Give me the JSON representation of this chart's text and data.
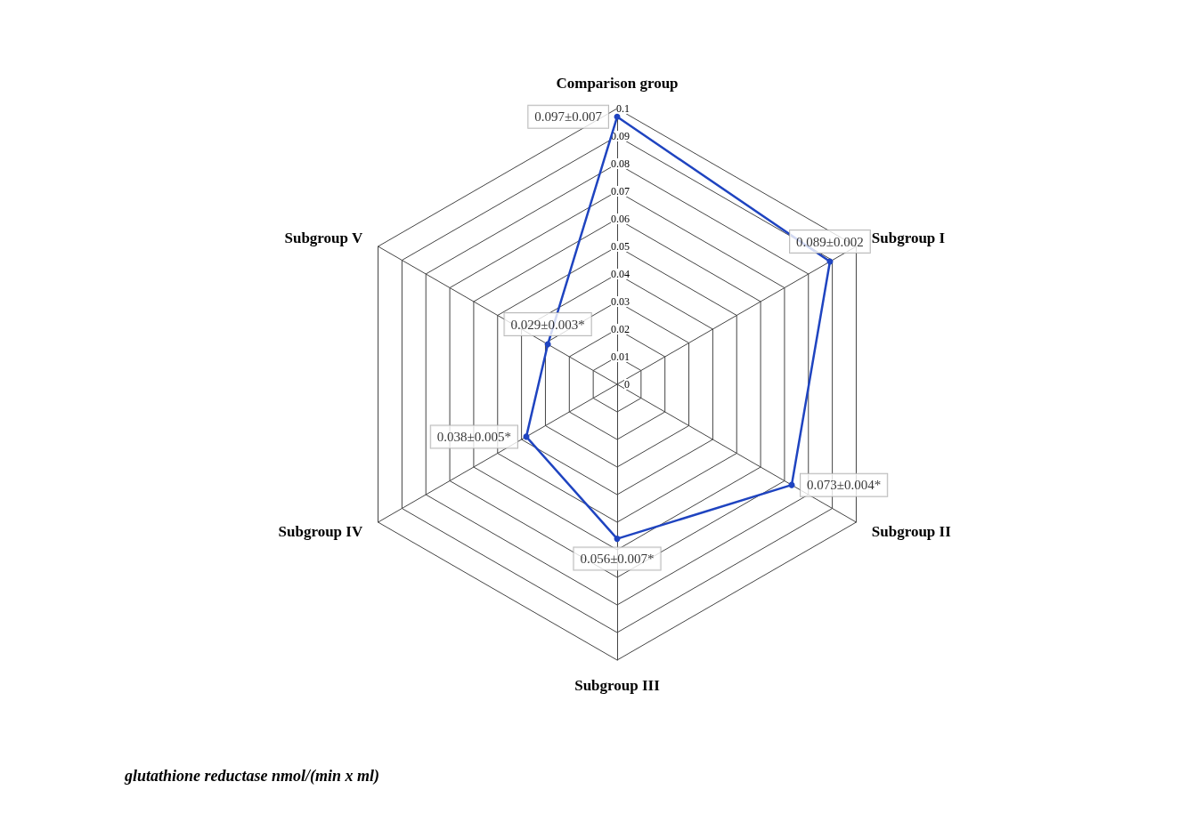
{
  "chart_data": {
    "type": "radar",
    "title": "glutathione reductase nmol/(min x ml)",
    "categories": [
      "Comparison group",
      "Subgroup I",
      "Subgroup II",
      "Subgroup III",
      "Subgroup IV",
      "Subgroup V"
    ],
    "series": [
      {
        "color": "#1f44c0",
        "values": [
          0.097,
          0.089,
          0.073,
          0.056,
          0.038,
          0.029
        ],
        "value_labels": [
          "0.097±0.007",
          "0.089±0.002",
          "0.073±0.004*",
          "0.056±0.007*",
          "0.038±0.005*",
          "0.029±0.003*"
        ]
      }
    ],
    "ylim": [
      0,
      0.1
    ],
    "yticks": [
      0,
      0.01,
      0.02,
      0.03,
      0.04,
      0.05,
      0.06,
      0.07,
      0.08,
      0.09,
      0.1
    ],
    "marker": "circle",
    "line_style": "solid"
  }
}
